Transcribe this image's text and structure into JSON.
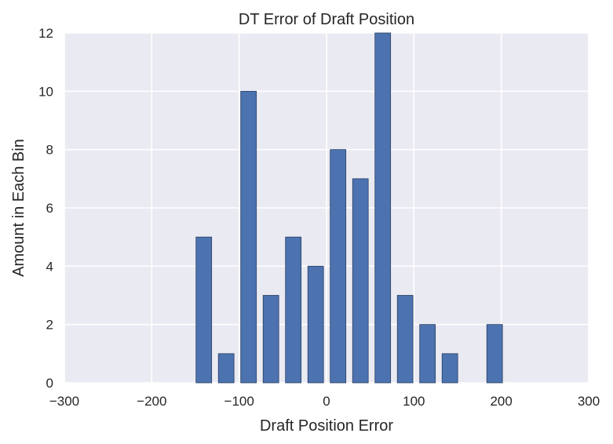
{
  "chart_data": {
    "type": "bar",
    "title": "DT Error of Draft Position",
    "xlabel": "Draft Position Error",
    "ylabel": "Amount in Each Bin",
    "xlim": [
      -300,
      300
    ],
    "ylim": [
      0,
      12
    ],
    "x_ticks": [
      -300,
      -200,
      -100,
      0,
      100,
      200,
      300
    ],
    "x_tick_labels": [
      "−300",
      "−200",
      "−100",
      "0",
      "100",
      "200",
      "300"
    ],
    "y_ticks": [
      0,
      2,
      4,
      6,
      8,
      10,
      12
    ],
    "y_tick_labels": [
      "0",
      "2",
      "4",
      "6",
      "8",
      "10",
      "12"
    ],
    "bin_width": 25.6,
    "bar_width": 17.9,
    "bin_centers": [
      -140.4,
      -114.8,
      -89.2,
      -63.6,
      -38.0,
      -12.4,
      13.2,
      38.8,
      64.4,
      90.0,
      115.6,
      141.2,
      166.8,
      192.4
    ],
    "values": [
      5,
      1,
      10,
      3,
      5,
      4,
      8,
      7,
      12,
      3,
      2,
      1,
      0,
      2
    ],
    "grid": true,
    "legend": "none",
    "colors": {
      "bar": "#4c72b0",
      "bar_edge": "#2a3f63",
      "plot_background": "#eaeaf2",
      "grid": "#ffffff",
      "text": "#262626"
    }
  }
}
